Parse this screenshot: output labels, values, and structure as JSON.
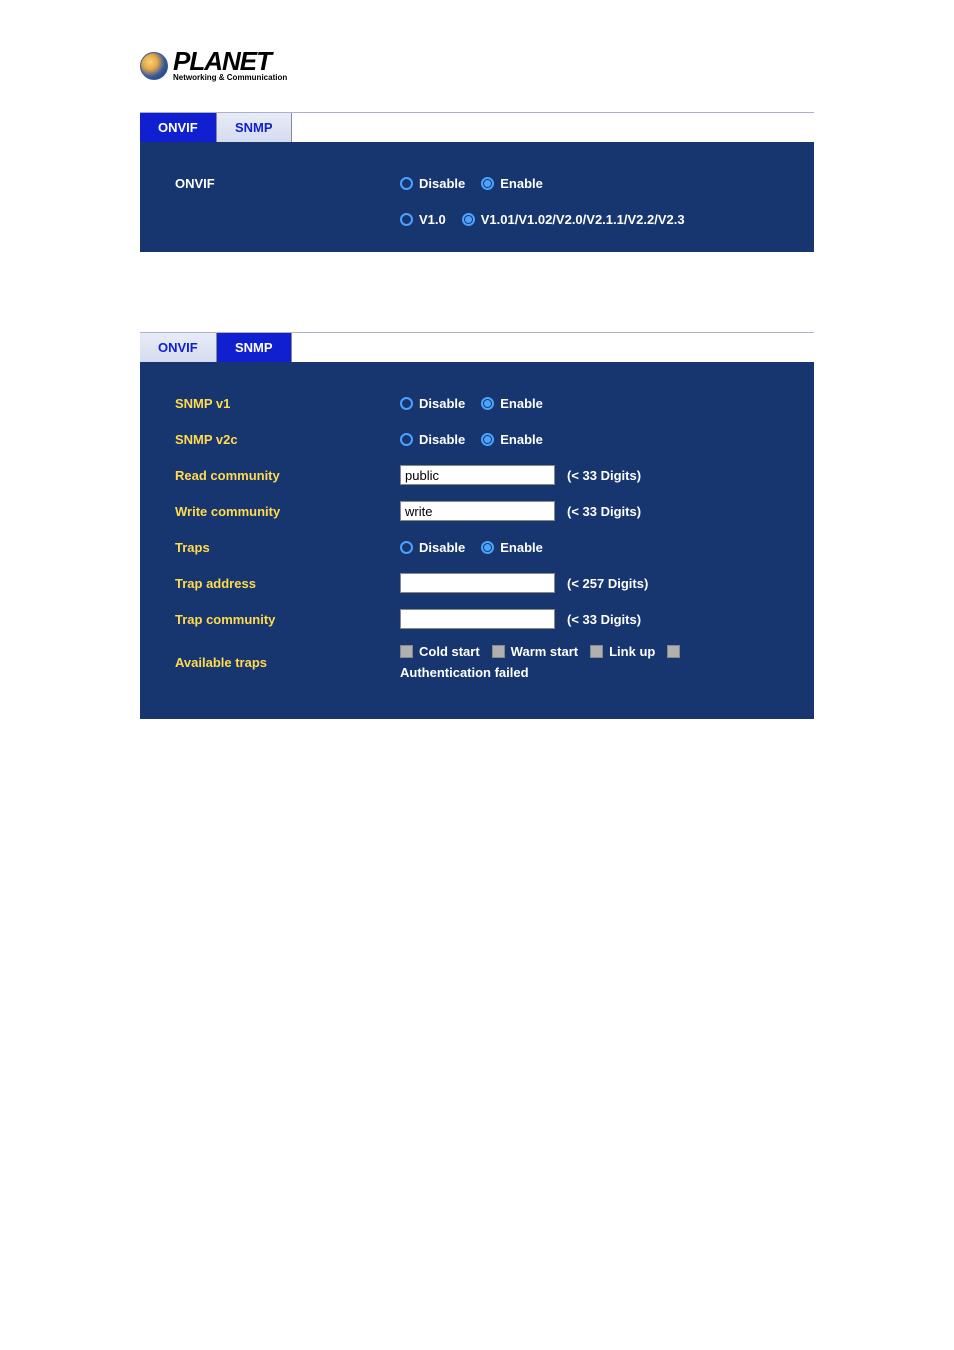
{
  "logo": {
    "name": "PLANET",
    "tagline": "Networking & Communication"
  },
  "panel1": {
    "tabs": [
      "ONVIF",
      "SNMP"
    ],
    "active_tab": 0,
    "label": "ONVIF",
    "radio1": {
      "opt1": "Disable",
      "opt2": "Enable"
    },
    "radio2": {
      "opt1": "V1.0",
      "opt2": "V1.01/V1.02/V2.0/V2.1.1/V2.2/V2.3"
    }
  },
  "panel2": {
    "tabs": [
      "ONVIF",
      "SNMP"
    ],
    "active_tab": 1,
    "rows": {
      "snmp_v1": {
        "label": "SNMP v1",
        "opt1": "Disable",
        "opt2": "Enable"
      },
      "snmp_v2c": {
        "label": "SNMP v2c",
        "opt1": "Disable",
        "opt2": "Enable"
      },
      "read_community": {
        "label": "Read community",
        "value": "public",
        "hint": "(< 33 Digits)"
      },
      "write_community": {
        "label": "Write community",
        "value": "write",
        "hint": "(< 33 Digits)"
      },
      "traps": {
        "label": "Traps",
        "opt1": "Disable",
        "opt2": "Enable"
      },
      "trap_address": {
        "label": "Trap address",
        "value": "",
        "hint": "(< 257 Digits)"
      },
      "trap_community": {
        "label": "Trap community",
        "value": "",
        "hint": "(< 33 Digits)"
      },
      "available_traps": {
        "label": "Available traps",
        "cb1": "Cold start",
        "cb2": "Warm start",
        "cb3": "Link up",
        "cb4": "Authentication failed"
      }
    }
  }
}
